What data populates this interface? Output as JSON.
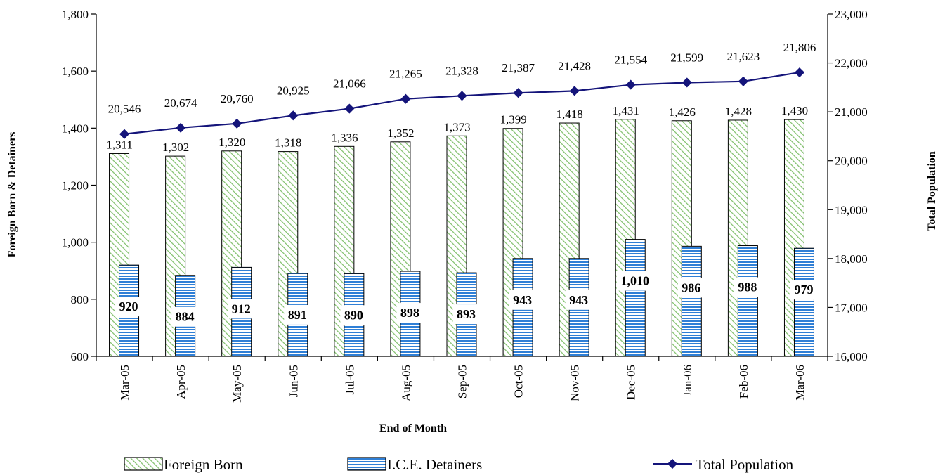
{
  "chart_data": {
    "type": "bar",
    "categories": [
      "Mar-05",
      "Apr-05",
      "May-05",
      "Jun-05",
      "Jul-05",
      "Aug-05",
      "Sep-05",
      "Oct-05",
      "Nov-05",
      "Dec-05",
      "Jan-06",
      "Feb-06",
      "Mar-06"
    ],
    "category_labels": [
      "Mar-05",
      "Apr-05",
      "May-05",
      "Jun-05",
      "Jul-05",
      "Aug-05",
      "Sep-05",
      "Oct-05",
      "Nov-05",
      "Dec-05",
      "Jan-06",
      "Feb-06",
      "Mar-06"
    ],
    "xlabel": "End of Month",
    "ylabel": "Foreign Born & Detainers",
    "y2label": "Total Population",
    "ylim": [
      600,
      1800
    ],
    "y2lim": [
      16000,
      23000
    ],
    "yticks": [
      600,
      800,
      1000,
      1200,
      1400,
      1600,
      1800
    ],
    "y2ticks": [
      16000,
      17000,
      18000,
      19000,
      20000,
      21000,
      22000,
      23000
    ],
    "ytick_labels": [
      "600",
      "800",
      "1,000",
      "1,200",
      "1,400",
      "1,600",
      "1,800"
    ],
    "y2tick_labels": [
      "16,000",
      "17,000",
      "18,000",
      "19,000",
      "20,000",
      "21,000",
      "22,000",
      "23,000"
    ],
    "grid": false,
    "legend_position": "bottom",
    "series": [
      {
        "name": "Foreign Born",
        "type": "bar",
        "axis": "left",
        "values": [
          1311,
          1302,
          1320,
          1318,
          1336,
          1352,
          1373,
          1399,
          1418,
          1431,
          1426,
          1428,
          1430
        ],
        "labels": [
          "1,311",
          "1,302",
          "1,320",
          "1,318",
          "1,336",
          "1,352",
          "1,373",
          "1,399",
          "1,418",
          "1,431",
          "1,426",
          "1,428",
          "1,430"
        ],
        "fill": "hatched-diagonal",
        "color": "#9fd08f"
      },
      {
        "name": "I.C.E. Detainers",
        "type": "bar",
        "axis": "left",
        "values": [
          920,
          884,
          912,
          891,
          890,
          898,
          893,
          943,
          943,
          1010,
          986,
          988,
          979
        ],
        "labels": [
          "920",
          "884",
          "912",
          "891",
          "890",
          "898",
          "893",
          "943",
          "943",
          "1,010",
          "986",
          "988",
          "979"
        ],
        "fill": "horizontal-stripes",
        "color": "#3b82d9"
      },
      {
        "name": "Total Population",
        "type": "line",
        "axis": "right",
        "values": [
          20546,
          20674,
          20760,
          20925,
          21066,
          21265,
          21328,
          21387,
          21428,
          21554,
          21599,
          21623,
          21806
        ],
        "labels": [
          "20,546",
          "20,674",
          "20,760",
          "20,925",
          "21,066",
          "21,265",
          "21,328",
          "21,387",
          "21,428",
          "21,554",
          "21,599",
          "21,623",
          "21,806"
        ],
        "color": "#14147a",
        "marker": "diamond"
      }
    ]
  }
}
